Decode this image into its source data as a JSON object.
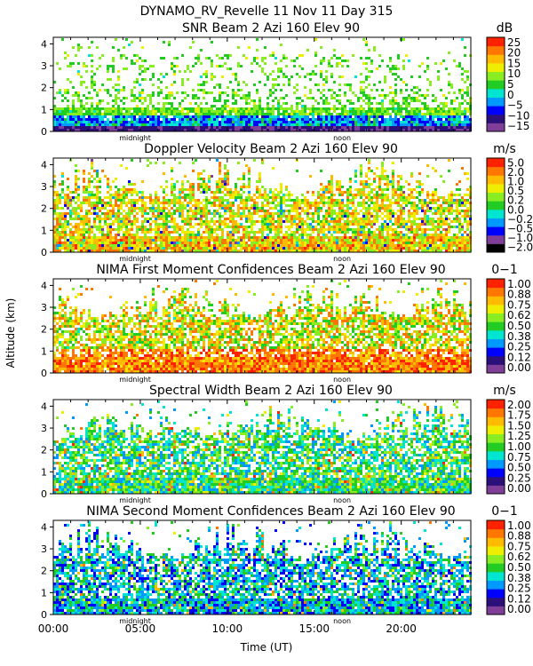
{
  "header": {
    "title": "DYNAMO_RV_Revelle   11 Nov 11 Day 315"
  },
  "axes": {
    "xlabel": "Time (UT)",
    "ylabel": "Altitude (km)",
    "x_ticks": [
      "00:00",
      "05:00",
      "10:00",
      "15:00",
      "20:00"
    ],
    "x_tick_values": [
      0,
      5,
      10,
      15,
      20
    ],
    "xlim": [
      0,
      24
    ],
    "y_ticks": [
      "0",
      "1",
      "2",
      "3",
      "4"
    ],
    "ylim": [
      0,
      4.3
    ],
    "markers": [
      {
        "label": "midnight",
        "x": 4.7
      },
      {
        "label": "noon",
        "x": 16.6
      }
    ]
  },
  "chart_data": [
    {
      "type": "heatmap",
      "title": "SNR Beam 2 Azi 160 Elev 90",
      "unit": "dB",
      "colorbar_ticks": [
        "25",
        "20",
        "15",
        "10",
        "5",
        "0",
        "−5",
        "−10",
        "−15"
      ],
      "colors": [
        "#7f3f98",
        "#2b0f7a",
        "#0000ff",
        "#0099ff",
        "#00e5d0",
        "#22cc22",
        "#88ee22",
        "#eeee00",
        "#ffbb00",
        "#ff7700",
        "#ff2200"
      ],
      "description_levels": "dense low layer below 1 km, sparse echoes up to 4 km"
    },
    {
      "type": "heatmap",
      "title": "Doppler Velocity Beam 2 Azi 160 Elev 90",
      "unit": "m/s",
      "colorbar_ticks": [
        "5.0",
        "2.0",
        "1.0",
        "0.5",
        "0.2",
        "0.0",
        "−0.2",
        "−0.5",
        "−1.0",
        "−2.0"
      ],
      "colors": [
        "#000000",
        "#7f3f98",
        "#0000ff",
        "#0099ff",
        "#00e5d0",
        "#22cc22",
        "#88ee22",
        "#eeee00",
        "#ffbb00",
        "#ff7700",
        "#ff2200"
      ]
    },
    {
      "type": "heatmap",
      "title": "NIMA First Moment Confidences Beam 2 Azi 160 Elev 90",
      "unit": "0−1",
      "colorbar_ticks": [
        "1.00",
        "0.88",
        "0.75",
        "0.62",
        "0.50",
        "0.38",
        "0.25",
        "0.12",
        "0.00"
      ],
      "colors": [
        "#7f3f98",
        "#2b0f7a",
        "#0000ff",
        "#0099ff",
        "#00e5d0",
        "#22cc22",
        "#88ee22",
        "#eeee00",
        "#ffbb00",
        "#ff7700",
        "#ff2200"
      ]
    },
    {
      "type": "heatmap",
      "title": "Spectral Width Beam 2 Azi 160 Elev 90",
      "unit": "m/s",
      "colorbar_ticks": [
        "2.00",
        "1.75",
        "1.50",
        "1.25",
        "1.00",
        "0.75",
        "0.50",
        "0.25",
        "0.00"
      ],
      "colors": [
        "#7f3f98",
        "#2b0f7a",
        "#0000ff",
        "#0099ff",
        "#00e5d0",
        "#22cc22",
        "#88ee22",
        "#eeee00",
        "#ffbb00",
        "#ff7700",
        "#ff2200"
      ]
    },
    {
      "type": "heatmap",
      "title": "NIMA Second Moment Confidences Beam 2 Azi 160 Elev 90",
      "unit": "0−1",
      "colorbar_ticks": [
        "1.00",
        "0.88",
        "0.75",
        "0.62",
        "0.50",
        "0.38",
        "0.25",
        "0.12",
        "0.00"
      ],
      "colors": [
        "#7f3f98",
        "#2b0f7a",
        "#0000ff",
        "#0099ff",
        "#00e5d0",
        "#22cc22",
        "#88ee22",
        "#eeee00",
        "#ffbb00",
        "#ff7700",
        "#ff2200"
      ]
    }
  ]
}
